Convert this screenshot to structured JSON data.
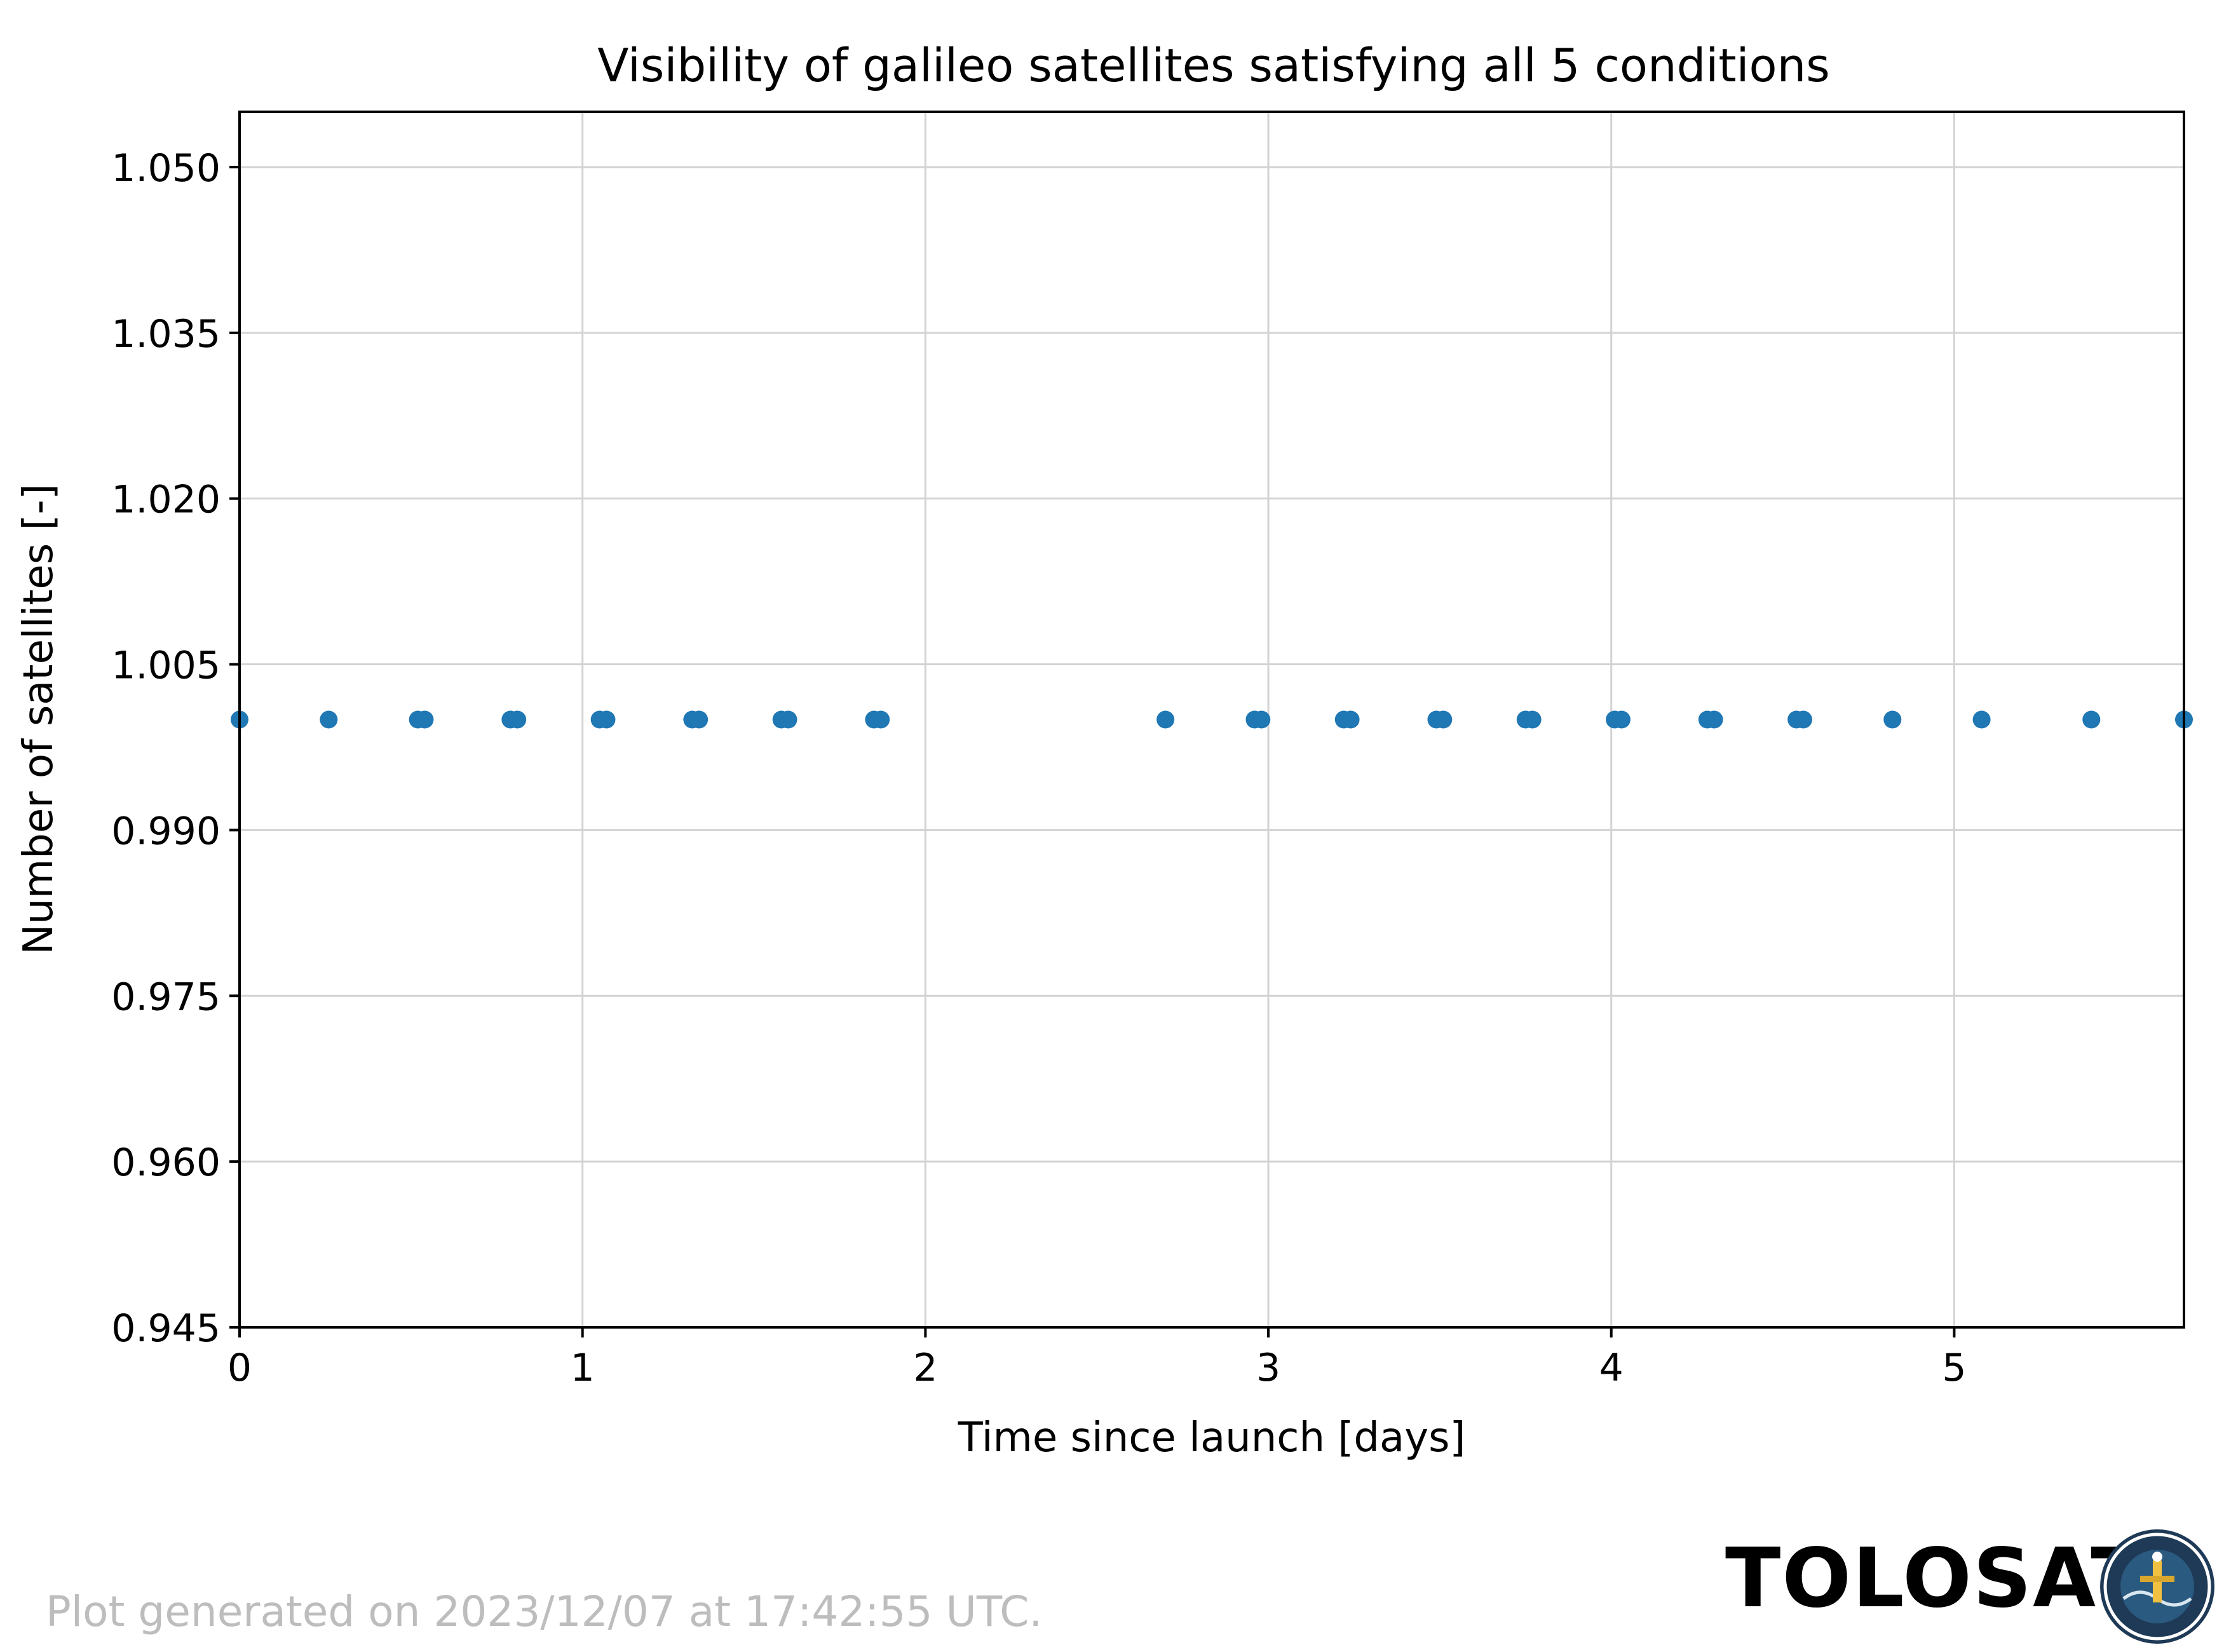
{
  "chart_data": {
    "type": "scatter",
    "title": "Visibility of galileo satellites satisfying all 5 conditions",
    "xlabel": "Time since launch [days]",
    "ylabel": "Number of satellites [-]",
    "xlim": [
      0,
      5.67
    ],
    "ylim": [
      0.945,
      1.055
    ],
    "x_ticks": [
      0,
      1,
      2,
      3,
      4,
      5
    ],
    "x_tick_labels": [
      "0",
      "1",
      "2",
      "3",
      "4",
      "5"
    ],
    "y_ticks": [
      0.945,
      0.96,
      0.975,
      0.99,
      1.005,
      1.02,
      1.035,
      1.05
    ],
    "y_tick_labels": [
      "0.945",
      "0.960",
      "0.975",
      "0.990",
      "1.005",
      "1.020",
      "1.035",
      "1.050"
    ],
    "grid": true,
    "marker_color": "#1f77b4",
    "series": [
      {
        "x": [
          0.0,
          0.26,
          0.52,
          0.54,
          0.79,
          0.81,
          1.05,
          1.07,
          1.32,
          1.34,
          1.58,
          1.6,
          1.85,
          1.87,
          2.7,
          2.96,
          2.98,
          3.22,
          3.24,
          3.49,
          3.51,
          3.75,
          3.77,
          4.01,
          4.03,
          4.28,
          4.3,
          4.54,
          4.56,
          4.82,
          5.08,
          5.4,
          5.67
        ],
        "y": [
          1,
          1,
          1,
          1,
          1,
          1,
          1,
          1,
          1,
          1,
          1,
          1,
          1,
          1,
          1,
          1,
          1,
          1,
          1,
          1,
          1,
          1,
          1,
          1,
          1,
          1,
          1,
          1,
          1,
          1,
          1,
          1,
          1
        ]
      }
    ]
  },
  "footer": {
    "generated_note": "Plot generated on 2023/12/07 at 17:42:55 UTC.",
    "brand": "TOLOSAT",
    "logo_icon": "tolosat-mission-badge-icon"
  }
}
